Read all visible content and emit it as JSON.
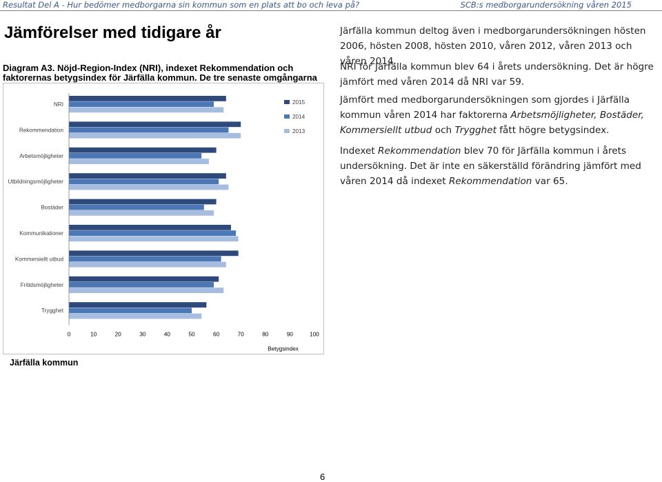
{
  "header": {
    "left": "Resultat Del A - Hur bedömer medborgarna sin kommun som en plats att bo och leva på?",
    "right": "SCB:s medborgarundersökning våren 2015"
  },
  "section_title": "Jämförelser med tidigare år",
  "caption": "Diagram A3. Nöjd-Region-Index (NRI), indexet Rekommendation och faktorernas betygsindex för Järfälla kommun. De tre senaste omgångarna kommunen deltagit",
  "org_name": "Järfälla kommun",
  "page_number": "6",
  "body": {
    "p1": "Järfälla kommun deltog även i medborgarundersökningen hösten 2006, hösten 2008, hösten 2010, våren 2012, våren 2013 och våren 2014.",
    "p2": "NRI för Järfälla kommun blev 64 i årets undersökning. Det är högre jämfört med våren 2014 då NRI var 59.",
    "p3_a": "Jämfört med medborgarundersökningen som gjordes i Järfälla kommun våren 2014 har faktorerna ",
    "p3_em1": "Arbetsmöjligheter, Bostäder, Kommersiellt utbud",
    "p3_b": " och ",
    "p3_em2": "Trygghet",
    "p3_c": " fått högre betygsindex.",
    "p4_a": "Indexet ",
    "p4_em1": "Rekommendation",
    "p4_b": " blev 70 för Järfälla kommun i årets undersökning. Det är inte en säkerställd förändring jämfört med våren 2014 då indexet ",
    "p4_em2": "Rekommendation",
    "p4_c": " var 65."
  },
  "colors": {
    "series_2015": "#2e4a7a",
    "series_2014": "#4b78b5",
    "series_2013": "#a6bde0",
    "header_text": "#3a5a8a"
  },
  "chart_data": {
    "type": "bar",
    "orientation": "horizontal",
    "categories": [
      "NRI",
      "Rekommendation",
      "Arbetsmöjligheter",
      "Utbildningsmöjligheter",
      "Bostäder",
      "Kommunikationer",
      "Kommersiellt utbud",
      "Fritidsmöjligheter",
      "Trygghet"
    ],
    "series": [
      {
        "name": "2015",
        "values": [
          64,
          70,
          60,
          64,
          60,
          66,
          69,
          61,
          56
        ]
      },
      {
        "name": "2014",
        "values": [
          59,
          65,
          54,
          61,
          55,
          68,
          62,
          59,
          50
        ]
      },
      {
        "name": "2013",
        "values": [
          63,
          70,
          57,
          65,
          59,
          69,
          64,
          63,
          54
        ]
      }
    ],
    "xlabel": "Betygsindex",
    "xlim": [
      0,
      100
    ],
    "xticks": [
      "0",
      "10",
      "20",
      "30",
      "40",
      "50",
      "60",
      "70",
      "80",
      "90",
      "100"
    ],
    "legend_position": "top-right",
    "grid": false
  }
}
